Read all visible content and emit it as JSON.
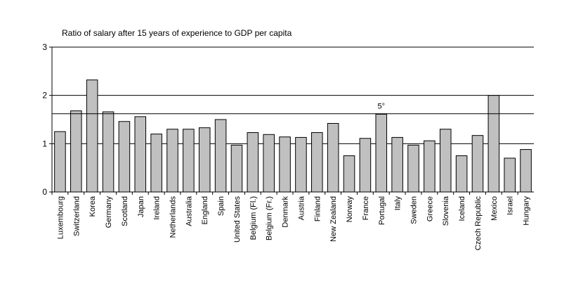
{
  "chart_data": {
    "type": "bar",
    "title": "Ratio of salary after 15 years of experience to GDP per capita",
    "xlabel": "",
    "ylabel": "",
    "ylim": [
      0,
      3
    ],
    "yticks": [
      "0",
      "1",
      "2",
      "3"
    ],
    "grid": true,
    "bar_color": "#c0c0c0",
    "categories": [
      "Luxembourg",
      "Switzerland",
      "Korea",
      "Germany",
      "Scotland",
      "Japan",
      "Ireland",
      "Netherlands",
      "Australia",
      "England",
      "Spain",
      "United States",
      "Belgium (Fl.)",
      "Belgium (Fr.)",
      "Denmark",
      "Austria",
      "Finland",
      "New Zealand",
      "Norway",
      "France",
      "Portugal",
      "Italy",
      "Sweden",
      "Greece",
      "Slovenia",
      "Iceland",
      "Czech Republic",
      "Mexico",
      "Israel",
      "Hungary"
    ],
    "values": [
      1.25,
      1.68,
      2.32,
      1.66,
      1.46,
      1.56,
      1.2,
      1.3,
      1.3,
      1.33,
      1.5,
      0.97,
      1.23,
      1.19,
      1.14,
      1.13,
      1.23,
      1.42,
      0.75,
      1.11,
      1.61,
      1.13,
      0.97,
      1.06,
      1.3,
      0.75,
      1.17,
      2.0,
      0.7,
      0.88
    ],
    "reference_line": 1.62,
    "reference_line_color": "#000000",
    "annotation": {
      "text": "5°",
      "category": "Portugal"
    }
  }
}
